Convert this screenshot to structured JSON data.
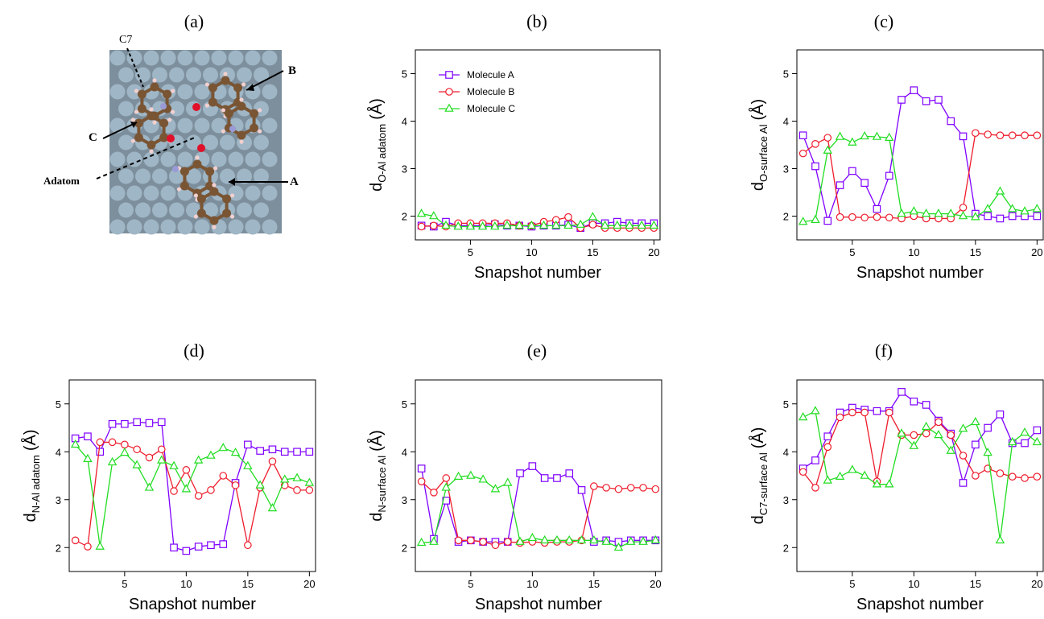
{
  "panel_labels": [
    "(a)",
    "(b)",
    "(c)",
    "(d)",
    "(e)",
    "(f)"
  ],
  "structure": {
    "labels": {
      "c7": "C7",
      "b": "B",
      "c": "C",
      "adatom": "Adatom",
      "a": "A"
    },
    "colors": {
      "aluminum": "#9fb6c6",
      "carbon": "#7a5534",
      "oxygen": "#e0102a",
      "nitrogen": "#9a9ad6",
      "hydrogen": "#f2d0d0"
    }
  },
  "series_colors": {
    "Molecule A": "#7f00ff",
    "Molecule B": "#ee1c2c",
    "Molecule C": "#22dd22"
  },
  "chart_data": [
    {
      "type": "line",
      "panel": "(b)",
      "xlabel": "Snapshot number",
      "ylabel": {
        "main": "d",
        "sub": "O-Al adatom",
        "unit": "(Å)"
      },
      "xlim": [
        0.5,
        20.5
      ],
      "ylim": [
        1.5,
        5.5
      ],
      "xticks": [
        5,
        10,
        15,
        20
      ],
      "yticks": [
        2,
        3,
        4,
        5
      ],
      "legend": {
        "placement": "top-left",
        "entries": [
          "Molecule A",
          "Molecule B",
          "Molecule C"
        ]
      },
      "x": [
        1,
        2,
        3,
        4,
        5,
        6,
        7,
        8,
        9,
        10,
        11,
        12,
        13,
        14,
        15,
        16,
        17,
        18,
        19,
        20
      ],
      "series": [
        {
          "name": "Molecule A",
          "marker": "square",
          "values": [
            1.8,
            1.78,
            1.88,
            1.8,
            1.8,
            1.8,
            1.83,
            1.8,
            1.8,
            1.78,
            1.8,
            1.8,
            1.82,
            1.75,
            1.85,
            1.85,
            1.88,
            1.85,
            1.85,
            1.85
          ]
        },
        {
          "name": "Molecule B",
          "marker": "circle",
          "values": [
            1.78,
            1.8,
            1.78,
            1.85,
            1.85,
            1.85,
            1.85,
            1.85,
            1.8,
            1.8,
            1.88,
            1.92,
            1.98,
            1.75,
            1.82,
            1.75,
            1.75,
            1.75,
            1.75,
            1.75
          ]
        },
        {
          "name": "Molecule C",
          "marker": "triangle",
          "values": [
            2.05,
            2.0,
            1.8,
            1.78,
            1.78,
            1.78,
            1.78,
            1.8,
            1.8,
            1.8,
            1.8,
            1.8,
            1.8,
            1.82,
            1.98,
            1.8,
            1.8,
            1.8,
            1.8,
            1.8
          ]
        }
      ]
    },
    {
      "type": "line",
      "panel": "(c)",
      "xlabel": "Snapshot number",
      "ylabel": {
        "main": "d",
        "sub": "O-surface Al",
        "unit": "(Å)"
      },
      "xlim": [
        0.5,
        20.5
      ],
      "ylim": [
        1.5,
        5.5
      ],
      "xticks": [
        5,
        10,
        15,
        20
      ],
      "yticks": [
        2,
        3,
        4,
        5
      ],
      "x": [
        1,
        2,
        3,
        4,
        5,
        6,
        7,
        8,
        9,
        10,
        11,
        12,
        13,
        14,
        15,
        16,
        17,
        18,
        19,
        20
      ],
      "series": [
        {
          "name": "Molecule A",
          "marker": "square",
          "values": [
            3.7,
            3.05,
            1.9,
            2.65,
            2.95,
            2.7,
            2.15,
            2.85,
            4.45,
            4.65,
            4.42,
            4.45,
            4.0,
            3.68,
            2.05,
            2.0,
            1.95,
            2.0,
            2.0,
            2.0
          ]
        },
        {
          "name": "Molecule B",
          "marker": "circle",
          "values": [
            3.32,
            3.52,
            3.65,
            1.98,
            1.98,
            1.97,
            1.98,
            1.97,
            1.95,
            2.0,
            1.95,
            1.95,
            1.95,
            2.18,
            3.75,
            3.72,
            3.7,
            3.7,
            3.7,
            3.7
          ]
        },
        {
          "name": "Molecule C",
          "marker": "triangle",
          "values": [
            1.88,
            1.92,
            3.38,
            3.67,
            3.55,
            3.68,
            3.67,
            3.65,
            2.05,
            2.1,
            2.05,
            2.05,
            2.05,
            2.0,
            1.98,
            2.15,
            2.52,
            2.15,
            2.1,
            2.15
          ]
        }
      ]
    },
    {
      "type": "line",
      "panel": "(d)",
      "xlabel": "Snapshot number",
      "ylabel": {
        "main": "d",
        "sub": "N-Al adatom",
        "unit": "(Å)"
      },
      "xlim": [
        0.5,
        20.5
      ],
      "ylim": [
        1.5,
        5.5
      ],
      "xticks": [
        5,
        10,
        15,
        20
      ],
      "yticks": [
        2,
        3,
        4,
        5
      ],
      "x": [
        1,
        2,
        3,
        4,
        5,
        6,
        7,
        8,
        9,
        10,
        11,
        12,
        13,
        14,
        15,
        16,
        17,
        18,
        19,
        20
      ],
      "series": [
        {
          "name": "Molecule A",
          "marker": "square",
          "values": [
            4.28,
            4.32,
            4.0,
            4.58,
            4.58,
            4.62,
            4.6,
            4.62,
            2.0,
            1.93,
            2.02,
            2.05,
            2.07,
            3.35,
            4.15,
            4.02,
            4.05,
            4.0,
            4.0,
            4.0
          ]
        },
        {
          "name": "Molecule B",
          "marker": "circle",
          "values": [
            2.15,
            2.02,
            4.2,
            4.2,
            4.15,
            4.05,
            3.88,
            4.05,
            3.18,
            3.62,
            3.08,
            3.2,
            3.5,
            3.3,
            2.05,
            3.25,
            3.8,
            3.3,
            3.2,
            3.2
          ]
        },
        {
          "name": "Molecule C",
          "marker": "triangle",
          "values": [
            4.15,
            3.85,
            2.02,
            3.78,
            3.98,
            3.72,
            3.25,
            3.82,
            3.7,
            3.22,
            3.82,
            3.92,
            4.08,
            3.98,
            3.7,
            3.3,
            2.82,
            3.42,
            3.45,
            3.35
          ]
        }
      ]
    },
    {
      "type": "line",
      "panel": "(e)",
      "xlabel": "Snapshot number",
      "ylabel": {
        "main": "d",
        "sub": "N-surface Al",
        "unit": "(Å)"
      },
      "xlim": [
        0.5,
        20.5
      ],
      "ylim": [
        1.5,
        5.5
      ],
      "xticks": [
        5,
        10,
        15,
        20
      ],
      "yticks": [
        2,
        3,
        4,
        5
      ],
      "x": [
        1,
        2,
        3,
        4,
        5,
        6,
        7,
        8,
        9,
        10,
        11,
        12,
        13,
        14,
        15,
        16,
        17,
        18,
        19,
        20
      ],
      "series": [
        {
          "name": "Molecule A",
          "marker": "square",
          "values": [
            3.65,
            2.18,
            2.98,
            2.12,
            2.15,
            2.12,
            2.12,
            2.12,
            3.55,
            3.7,
            3.45,
            3.45,
            3.55,
            3.2,
            2.12,
            2.15,
            2.12,
            2.15,
            2.15,
            2.15
          ]
        },
        {
          "name": "Molecule B",
          "marker": "circle",
          "values": [
            3.38,
            3.15,
            3.45,
            2.15,
            2.15,
            2.12,
            2.05,
            2.12,
            2.1,
            2.12,
            2.1,
            2.12,
            2.12,
            2.15,
            3.28,
            3.25,
            3.22,
            3.25,
            3.25,
            3.22
          ]
        },
        {
          "name": "Molecule C",
          "marker": "triangle",
          "values": [
            2.1,
            2.12,
            3.25,
            3.48,
            3.5,
            3.42,
            3.22,
            3.35,
            2.12,
            2.2,
            2.15,
            2.15,
            2.15,
            2.15,
            2.15,
            2.12,
            2.0,
            2.12,
            2.12,
            2.15
          ]
        }
      ]
    },
    {
      "type": "line",
      "panel": "(f)",
      "xlabel": "Snapshot number",
      "ylabel": {
        "main": "d",
        "sub": "C7-surface Al",
        "unit": "(Å)"
      },
      "xlim": [
        0.5,
        20.5
      ],
      "ylim": [
        1.5,
        5.5
      ],
      "xticks": [
        5,
        10,
        15,
        20
      ],
      "yticks": [
        2,
        3,
        4,
        5
      ],
      "x": [
        1,
        2,
        3,
        4,
        5,
        6,
        7,
        8,
        9,
        10,
        11,
        12,
        13,
        14,
        15,
        16,
        17,
        18,
        19,
        20
      ],
      "series": [
        {
          "name": "Molecule A",
          "marker": "square",
          "values": [
            3.65,
            3.82,
            4.32,
            4.82,
            4.92,
            4.88,
            4.85,
            4.85,
            5.25,
            5.05,
            4.98,
            4.65,
            4.38,
            3.35,
            4.15,
            4.5,
            4.78,
            4.18,
            4.18,
            4.45
          ]
        },
        {
          "name": "Molecule B",
          "marker": "circle",
          "values": [
            3.58,
            3.25,
            4.1,
            4.72,
            4.82,
            4.82,
            3.38,
            4.82,
            4.35,
            4.35,
            4.38,
            4.62,
            4.35,
            3.92,
            3.5,
            3.65,
            3.55,
            3.48,
            3.45,
            3.48
          ]
        },
        {
          "name": "Molecule C",
          "marker": "triangle",
          "values": [
            4.72,
            4.85,
            3.4,
            3.48,
            3.62,
            3.5,
            3.32,
            3.32,
            4.38,
            4.12,
            4.52,
            4.35,
            4.02,
            4.48,
            4.62,
            3.98,
            2.15,
            4.2,
            4.4,
            4.2
          ]
        }
      ]
    }
  ]
}
